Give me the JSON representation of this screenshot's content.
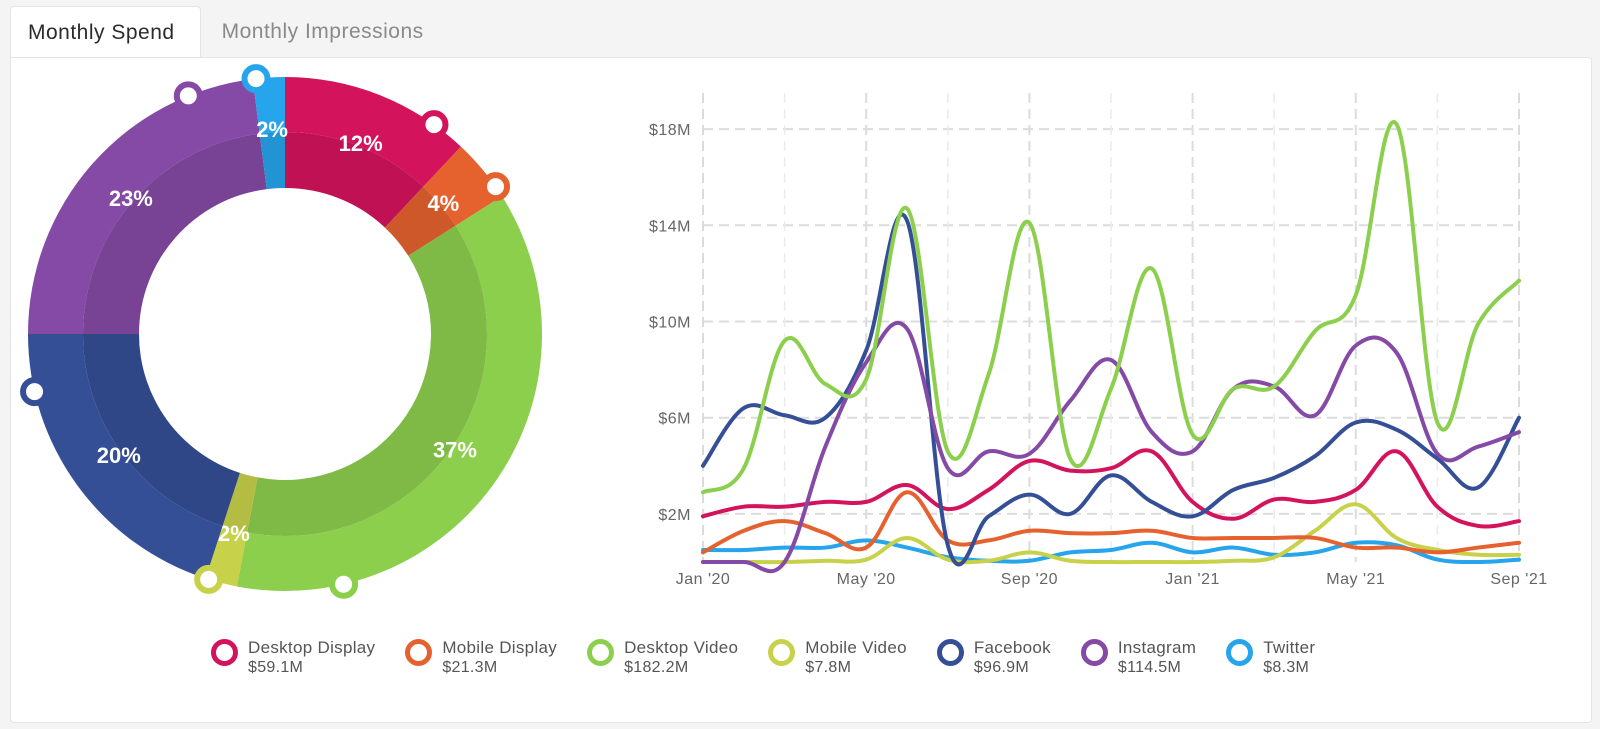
{
  "tabs": [
    {
      "label": "Monthly Spend",
      "active": true
    },
    {
      "label": "Monthly Impressions",
      "active": false
    }
  ],
  "colors": {
    "desktop_display": "#d4135d",
    "mobile_display": "#e5622e",
    "desktop_video": "#8ccf4d",
    "mobile_video": "#c8d14a",
    "facebook": "#354f96",
    "instagram": "#8549a6",
    "twitter": "#26a4ec"
  },
  "chart_data": [
    {
      "type": "pie",
      "variant": "donut",
      "slices": [
        {
          "name": "Desktop Display",
          "percent": 12,
          "label": "12%",
          "color": "#d4135d"
        },
        {
          "name": "Mobile Display",
          "percent": 4,
          "label": "4%",
          "color": "#e5622e"
        },
        {
          "name": "Desktop Video",
          "percent": 37,
          "label": "37%",
          "color": "#8ccf4d"
        },
        {
          "name": "Mobile Video",
          "percent": 2,
          "label": "2%",
          "color": "#c8d14a"
        },
        {
          "name": "Facebook",
          "percent": 20,
          "label": "20%",
          "color": "#354f96"
        },
        {
          "name": "Instagram",
          "percent": 23,
          "label": "23%",
          "color": "#8549a6"
        },
        {
          "name": "Twitter",
          "percent": 2,
          "label": "2%",
          "color": "#26a4ec"
        }
      ]
    },
    {
      "type": "line",
      "x": [
        "Jan '20",
        "Feb '20",
        "Mar '20",
        "Apr '20",
        "May '20",
        "Jun '20",
        "Jul '20",
        "Aug '20",
        "Sep '20",
        "Oct '20",
        "Nov '20",
        "Dec '20",
        "Jan '21",
        "Feb '21",
        "Mar '21",
        "Apr '21",
        "May '21",
        "Jun '21",
        "Jul '21",
        "Aug '21",
        "Sep '21"
      ],
      "x_tick_labels": [
        "Jan '20",
        "May '20",
        "Sep '20",
        "Jan '21",
        "May '21",
        "Sep '21"
      ],
      "y_tick_labels": [
        "$2M",
        "$6M",
        "$10M",
        "$14M",
        "$18M"
      ],
      "y_ticks": [
        2,
        6,
        10,
        14,
        18
      ],
      "ylim": [
        0,
        19.5
      ],
      "y_unit": "$M",
      "grid": true,
      "legend_position": "bottom",
      "series": [
        {
          "name": "Desktop Display",
          "total": "$59.1M",
          "color": "#d4135d",
          "values": [
            1.9,
            2.3,
            2.3,
            2.5,
            2.5,
            3.2,
            2.2,
            3.0,
            4.2,
            3.8,
            3.9,
            4.6,
            2.5,
            1.8,
            2.6,
            2.5,
            3.0,
            4.6,
            2.3,
            1.5,
            1.7
          ]
        },
        {
          "name": "Mobile Display",
          "total": "$21.3M",
          "color": "#e5622e",
          "values": [
            0.4,
            1.3,
            1.7,
            1.2,
            0.6,
            2.9,
            0.9,
            0.9,
            1.3,
            1.2,
            1.2,
            1.3,
            1.0,
            1.0,
            1.0,
            1.0,
            0.6,
            0.6,
            0.4,
            0.6,
            0.8
          ]
        },
        {
          "name": "Desktop Video",
          "total": "$182.2M",
          "color": "#8ccf4d",
          "values": [
            2.9,
            3.9,
            9.2,
            7.4,
            7.6,
            14.7,
            4.6,
            7.8,
            14.1,
            4.3,
            7.2,
            12.2,
            5.3,
            7.2,
            7.3,
            9.6,
            11.1,
            18.2,
            5.8,
            9.9,
            11.7
          ]
        },
        {
          "name": "Mobile Video",
          "total": "$7.8M",
          "color": "#c8d14a",
          "values": [
            0.0,
            0.0,
            0.0,
            0.05,
            0.1,
            1.0,
            0.1,
            0.05,
            0.4,
            0.05,
            0.0,
            0.0,
            0.0,
            0.05,
            0.2,
            1.3,
            2.4,
            1.0,
            0.5,
            0.3,
            0.3
          ]
        },
        {
          "name": "Facebook",
          "total": "$96.9M",
          "color": "#354f96",
          "values": [
            4.0,
            6.4,
            6.1,
            6.0,
            8.8,
            14.2,
            0.7,
            1.9,
            2.8,
            2.0,
            3.6,
            2.5,
            1.9,
            3.0,
            3.5,
            4.4,
            5.8,
            5.5,
            4.3,
            3.1,
            6.0
          ]
        },
        {
          "name": "Instagram",
          "total": "$114.5M",
          "color": "#8549a6",
          "values": [
            0.0,
            0.0,
            0.0,
            4.8,
            8.3,
            9.7,
            3.9,
            4.6,
            4.5,
            6.7,
            8.4,
            5.4,
            4.6,
            7.2,
            7.3,
            6.1,
            9.0,
            8.7,
            4.5,
            4.8,
            5.4
          ]
        },
        {
          "name": "Twitter",
          "total": "$8.3M",
          "color": "#26a4ec",
          "values": [
            0.5,
            0.5,
            0.6,
            0.6,
            0.9,
            0.6,
            0.2,
            0.05,
            0.05,
            0.4,
            0.5,
            0.8,
            0.4,
            0.6,
            0.3,
            0.4,
            0.8,
            0.7,
            0.1,
            0.0,
            0.1
          ]
        }
      ]
    }
  ]
}
